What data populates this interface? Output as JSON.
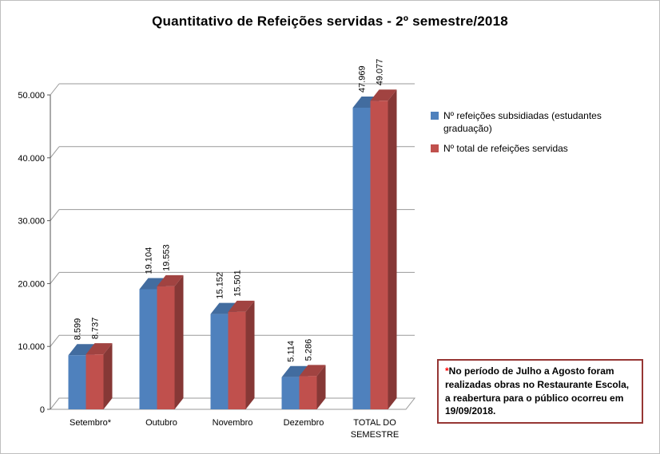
{
  "title": "Quantitativo de Refeições servidas - 2º semestre/2018",
  "chart_data": {
    "type": "bar",
    "style": "3d-clustered-column",
    "categories": [
      "Setembro*",
      "Outubro",
      "Novembro",
      "Dezembro",
      "TOTAL DO SEMESTRE"
    ],
    "series": [
      {
        "name": "Nº refeições subsidiadas (estudantes graduação)",
        "color": "#4F81BD",
        "values": [
          8599,
          19104,
          15152,
          5114,
          47969
        ],
        "labels": [
          "8.599",
          "19.104",
          "15.152",
          "5.114",
          "47.969"
        ]
      },
      {
        "name": "Nº total de refeições servidas",
        "color": "#C0504D",
        "values": [
          8737,
          19553,
          15501,
          5286,
          49077
        ],
        "labels": [
          "8.737",
          "19.553",
          "15.501",
          "5.286",
          "49.077"
        ]
      }
    ],
    "ylim": [
      0,
      50000
    ],
    "ytick_interval": 10000,
    "ytick_labels": [
      "0",
      "10.000",
      "20.000",
      "30.000",
      "40.000",
      "50.000"
    ],
    "grid": true,
    "legend_position": "right"
  },
  "note": {
    "asterisk": "*",
    "text": "No período de Julho a Agosto foram realizadas obras no Restaurante Escola, a reabertura para o público ocorreu em 19/09/2018.",
    "border_color": "#963634",
    "asterisk_color": "#FF0000"
  }
}
